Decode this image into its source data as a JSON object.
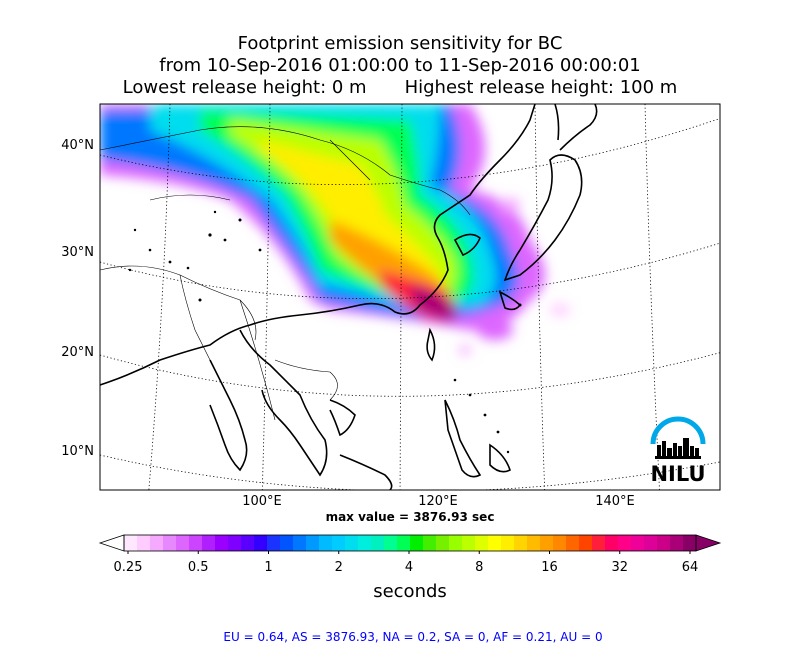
{
  "title": {
    "line1": "Footprint emission sensitivity for BC",
    "line2": "from 10-Sep-2016 01:00:00 to 11-Sep-2016 00:00:01",
    "lowest_release": "Lowest release height: 0 m",
    "highest_release": "Highest release height: 100 m"
  },
  "map": {
    "lat_labels": [
      "40°N",
      "30°N",
      "20°N",
      "10°N"
    ],
    "lon_labels": [
      "100°E",
      "120°E",
      "140°E"
    ],
    "logo_text": "NILU"
  },
  "max_value_text": "max value = 3876.93 sec",
  "colorbar": {
    "tick_labels": [
      "0.25",
      "0.5",
      "1",
      "2",
      "4",
      "8",
      "16",
      "32",
      "64"
    ],
    "units": "seconds",
    "colors": [
      "#ffe8ff",
      "#ffccff",
      "#f5aaff",
      "#e888ff",
      "#dd66ff",
      "#cc44ff",
      "#b020ff",
      "#9900ff",
      "#8000ff",
      "#5a00ff",
      "#3300ff",
      "#1a33ff",
      "#0055ff",
      "#0077ff",
      "#0099ff",
      "#00bbff",
      "#00ccff",
      "#00ddee",
      "#00eedd",
      "#00f0c0",
      "#00ff90",
      "#00ff55",
      "#00ee00",
      "#44ee00",
      "#77f000",
      "#99ff00",
      "#bbff00",
      "#ddff00",
      "#ffff00",
      "#ffee00",
      "#ffd400",
      "#ffbb00",
      "#ffa000",
      "#ff8800",
      "#ff6600",
      "#ff4400",
      "#ff1f3a",
      "#ff0066",
      "#ff0088",
      "#ee0099",
      "#dd0099",
      "#cc0088",
      "#aa0077",
      "#880066"
    ]
  },
  "regional_summary": "EU = 0.64,  AS = 3876.93,  NA = 0.2,  SA = 0,  AF = 0.21,  AU = 0"
}
